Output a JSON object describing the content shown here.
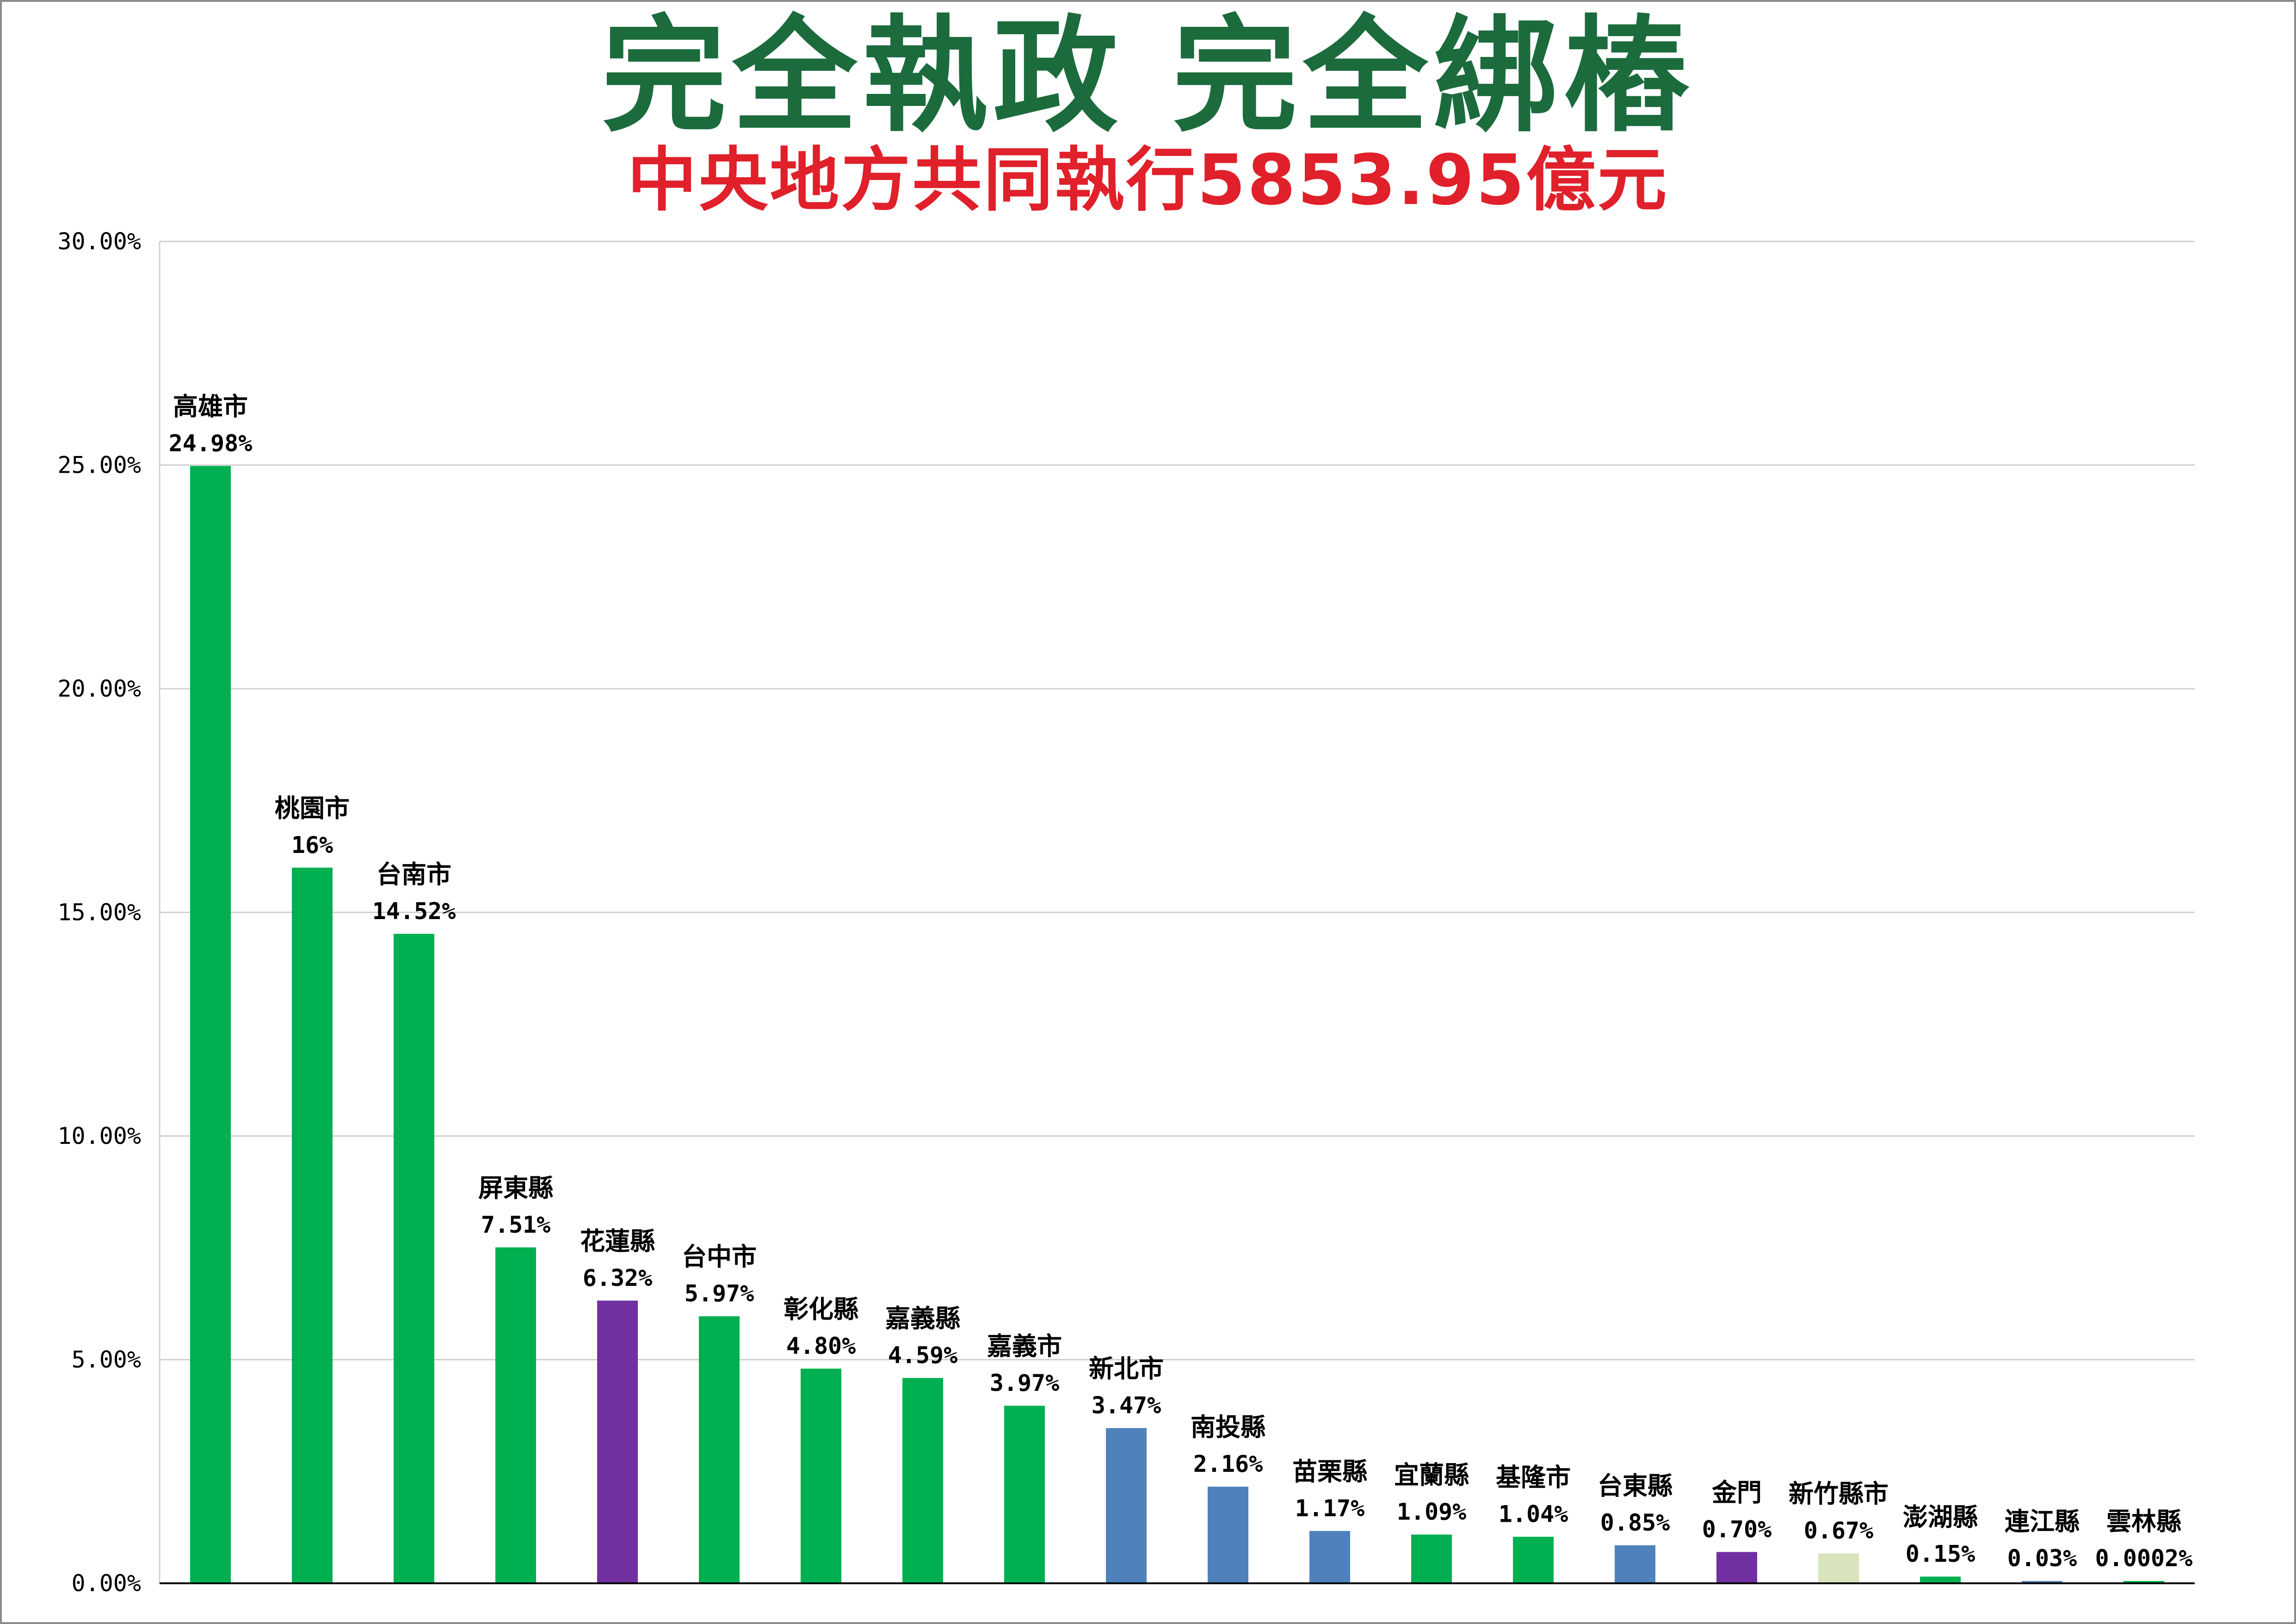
{
  "header": {
    "title": "完全執政 完全綁樁",
    "subtitle": "中央地方共同執行5853.95億元"
  },
  "colors": {
    "title": "#1b6b3d",
    "subtitle": "#e0202a",
    "gridline": "#d0d0d0",
    "axis": "#000000",
    "green": "#00b050",
    "purple": "#7030a0",
    "blue": "#4f81bd",
    "light_green": "#d8e4bc"
  },
  "chart_data": {
    "type": "bar",
    "title": "完全執政 完全綁樁",
    "subtitle": "中央地方共同執行5853.95億元",
    "xlabel": "",
    "ylabel": "",
    "ylim": [
      0,
      30
    ],
    "yticks": [
      0,
      5,
      10,
      15,
      20,
      25,
      30
    ],
    "ytick_labels": [
      "0.00%",
      "5.00%",
      "10.00%",
      "15.00%",
      "20.00%",
      "25.00%",
      "30.00%"
    ],
    "grid": true,
    "legend": "none",
    "categories": [
      "高雄市",
      "桃園市",
      "台南市",
      "屏東縣",
      "花蓮縣",
      "台中市",
      "彰化縣",
      "嘉義縣",
      "嘉義市",
      "新北市",
      "南投縣",
      "苗栗縣",
      "宜蘭縣",
      "基隆市",
      "台東縣",
      "金門",
      "新竹縣市",
      "澎湖縣",
      "連江縣",
      "雲林縣"
    ],
    "values": [
      24.98,
      16,
      14.52,
      7.51,
      6.32,
      5.97,
      4.8,
      4.59,
      3.97,
      3.47,
      2.16,
      1.17,
      1.09,
      1.04,
      0.85,
      0.7,
      0.67,
      0.15,
      0.03,
      0.0002
    ],
    "value_labels": [
      "24.98%",
      "16%",
      "14.52%",
      "7.51%",
      "6.32%",
      "5.97%",
      "4.80%",
      "4.59%",
      "3.97%",
      "3.47%",
      "2.16%",
      "1.17%",
      "1.09%",
      "1.04%",
      "0.85%",
      "0.70%",
      "0.67%",
      "0.15%",
      "0.03%",
      "0.0002%"
    ],
    "bar_colors": [
      "#00b050",
      "#00b050",
      "#00b050",
      "#00b050",
      "#7030a0",
      "#00b050",
      "#00b050",
      "#00b050",
      "#00b050",
      "#4f81bd",
      "#4f81bd",
      "#4f81bd",
      "#00b050",
      "#00b050",
      "#4f81bd",
      "#7030a0",
      "#d8e4bc",
      "#00b050",
      "#4f81bd",
      "#00b050"
    ]
  }
}
